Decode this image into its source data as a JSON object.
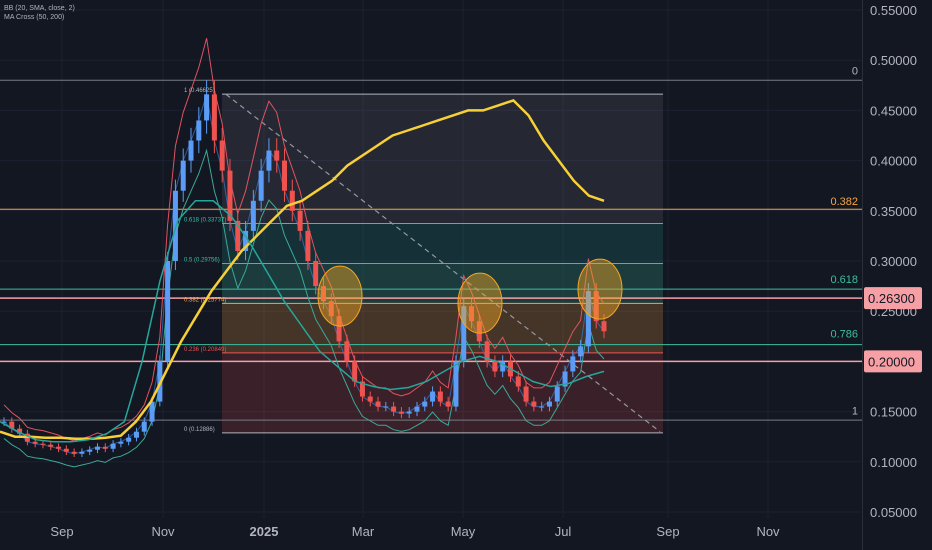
{
  "indicators": [
    "BB (20, SMA, close, 2)",
    "MA Cross (50, 200)"
  ],
  "colors": {
    "background": "#131722",
    "candle_up": "#5b9cf6",
    "candle_down": "#ef5350",
    "ma_slow": "#f7d038",
    "ma_fast": "#26a69a",
    "bb_upper": "#e05260",
    "bb_lower": "#3ba997",
    "bb_basis": "#3a7bd5",
    "highlight_circle": "#f5a623",
    "price_label_red": "#f6a0a6",
    "fib_orange": "#f7a440",
    "fib_green": "#3bbfa0"
  },
  "chart_data": {
    "type": "candlestick",
    "y_axis": {
      "ticks": [
        "0.55000",
        "0.50000",
        "0.45000",
        "0.40000",
        "0.35000",
        "0.30000",
        "0.25000",
        "0.20000",
        "0.15000",
        "0.10000",
        "0.05000"
      ],
      "range": [
        0.05,
        0.55
      ]
    },
    "x_axis": {
      "ticks": [
        "Sep",
        "Nov",
        "2025",
        "Mar",
        "May",
        "Jul",
        "Sep",
        "Nov"
      ]
    },
    "price_close_series": [
      0.14,
      0.133,
      0.128,
      0.12,
      0.118,
      0.117,
      0.115,
      0.113,
      0.11,
      0.108,
      0.11,
      0.112,
      0.115,
      0.113,
      0.118,
      0.12,
      0.124,
      0.13,
      0.14,
      0.16,
      0.2,
      0.3,
      0.37,
      0.4,
      0.42,
      0.44,
      0.466,
      0.42,
      0.39,
      0.34,
      0.31,
      0.33,
      0.36,
      0.39,
      0.41,
      0.4,
      0.37,
      0.35,
      0.33,
      0.3,
      0.275,
      0.26,
      0.245,
      0.22,
      0.2,
      0.18,
      0.165,
      0.16,
      0.155,
      0.155,
      0.15,
      0.148,
      0.15,
      0.155,
      0.16,
      0.17,
      0.16,
      0.155,
      0.2,
      0.255,
      0.24,
      0.22,
      0.2,
      0.19,
      0.2,
      0.185,
      0.175,
      0.16,
      0.155,
      0.155,
      0.16,
      0.175,
      0.19,
      0.205,
      0.215,
      0.27,
      0.24,
      0.23
    ],
    "series": [
      {
        "name": "MA 200",
        "values": [
          0.13,
          0.125,
          0.125,
          0.124,
          0.124,
          0.123,
          0.123,
          0.124,
          0.126,
          0.14,
          0.16,
          0.19,
          0.22,
          0.245,
          0.27,
          0.29,
          0.31,
          0.325,
          0.34,
          0.355,
          0.36,
          0.37,
          0.38,
          0.395,
          0.405,
          0.415,
          0.425,
          0.43,
          0.435,
          0.44,
          0.445,
          0.45,
          0.45,
          0.455,
          0.46,
          0.445,
          0.42,
          0.4,
          0.38,
          0.365,
          0.36
        ]
      },
      {
        "name": "MA 50",
        "values": [
          0.14,
          0.13,
          0.122,
          0.12,
          0.12,
          0.122,
          0.128,
          0.14,
          0.2,
          0.28,
          0.34,
          0.36,
          0.36,
          0.345,
          0.32,
          0.29,
          0.26,
          0.235,
          0.21,
          0.195,
          0.18,
          0.175,
          0.172,
          0.174,
          0.18,
          0.19,
          0.2,
          0.205,
          0.2,
          0.19,
          0.18,
          0.175,
          0.178,
          0.185,
          0.19
        ]
      }
    ],
    "bollinger": {
      "period": 20,
      "mult": 2,
      "basis": "SMA",
      "source": "close"
    },
    "fibonacci": {
      "levels": [
        {
          "ratio": "1",
          "label": "1 (0.46625)",
          "price": 0.46625
        },
        {
          "ratio": "0.618",
          "label": "0.618 (0.33737)",
          "price": 0.33737
        },
        {
          "ratio": "0.5",
          "label": "0.5 (0.29756)",
          "price": 0.29756
        },
        {
          "ratio": "0.382",
          "label": "0.382 (0.25774)",
          "price": 0.25774
        },
        {
          "ratio": "0.236",
          "label": "0.236 (0.20849)",
          "price": 0.20849
        },
        {
          "ratio": "0",
          "label": "0 (0.12886)",
          "price": 0.12886
        }
      ]
    },
    "right_fib_labels": [
      {
        "text": "0",
        "price": 0.48
      },
      {
        "text": "0.382",
        "price": 0.35
      },
      {
        "text": "0.618",
        "price": 0.272
      },
      {
        "text": "0.786",
        "price": 0.218
      },
      {
        "text": "1",
        "price": 0.141
      }
    ],
    "horizontal_lines": [
      {
        "price": 0.48,
        "color": "#787b86"
      },
      {
        "price": 0.3515,
        "color": "#f7a440"
      },
      {
        "price": 0.272,
        "color": "#3bbfa0"
      },
      {
        "price": 0.2167,
        "color": "#3bbfa0"
      },
      {
        "price": 0.1415,
        "color": "#787b86"
      }
    ],
    "price_labels": [
      {
        "text": "0.26300",
        "price": 0.263
      },
      {
        "text": "0.20000",
        "price": 0.2
      }
    ],
    "annotations": [
      "circle-mar",
      "circle-may",
      "circle-jul",
      "dashed-downtrend-line"
    ]
  }
}
